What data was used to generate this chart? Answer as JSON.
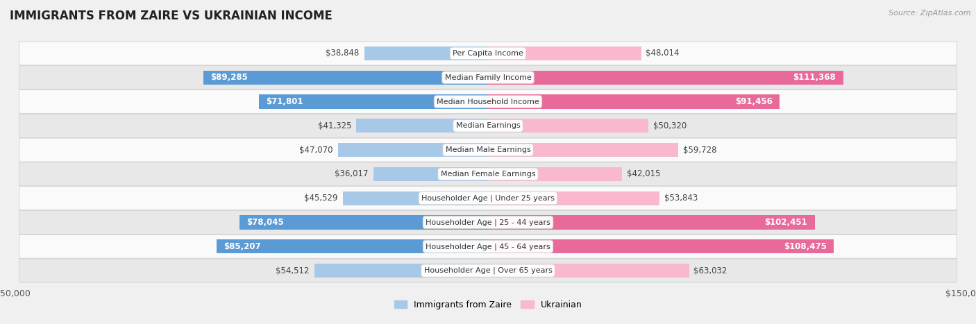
{
  "title": "IMMIGRANTS FROM ZAIRE VS UKRAINIAN INCOME",
  "source": "Source: ZipAtlas.com",
  "categories": [
    "Per Capita Income",
    "Median Family Income",
    "Median Household Income",
    "Median Earnings",
    "Median Male Earnings",
    "Median Female Earnings",
    "Householder Age | Under 25 years",
    "Householder Age | 25 - 44 years",
    "Householder Age | 45 - 64 years",
    "Householder Age | Over 65 years"
  ],
  "zaire_values": [
    38848,
    89285,
    71801,
    41325,
    47070,
    36017,
    45529,
    78045,
    85207,
    54512
  ],
  "ukrainian_values": [
    48014,
    111368,
    91456,
    50320,
    59728,
    42015,
    53843,
    102451,
    108475,
    63032
  ],
  "zaire_color_light": "#a8c8e8",
  "zaire_color_dark": "#5b9bd5",
  "ukrainian_color_light": "#f9b8ce",
  "ukrainian_color_dark": "#e86a9a",
  "zaire_label": "Immigrants from Zaire",
  "ukrainian_label": "Ukrainian",
  "axis_limit": 150000,
  "bar_height": 0.58,
  "bg_color": "#f0f0f0",
  "row_light_color": "#fafafa",
  "row_dark_color": "#e8e8e8",
  "title_fontsize": 12,
  "source_fontsize": 8,
  "value_fontsize": 8.5,
  "label_fontsize": 8,
  "inside_threshold": 70000
}
